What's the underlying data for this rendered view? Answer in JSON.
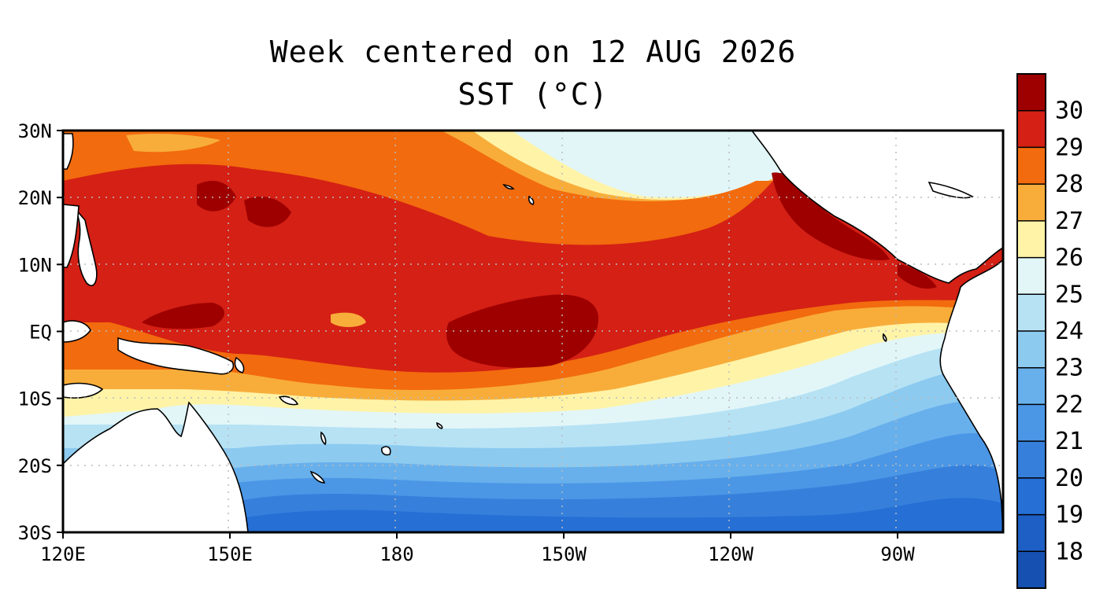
{
  "title_line1": "Week centered on 12 AUG 2026",
  "title_line2": "SST (°C)",
  "map": {
    "lon_range": [
      120,
      285
    ],
    "lat_range": [
      -30,
      30
    ],
    "x_ticks": [
      "120E",
      "150E",
      "180",
      "150W",
      "120W",
      "90W"
    ],
    "y_ticks": [
      "30N",
      "20N",
      "10N",
      "EQ",
      "10S",
      "20S",
      "30S"
    ],
    "grid": "dotted",
    "land_color": "#ffffff"
  },
  "colorbar": {
    "labels": [
      "30",
      "29",
      "28",
      "27",
      "26",
      "25",
      "24",
      "23",
      "22",
      "21",
      "20",
      "19",
      "18"
    ],
    "colors": [
      "#9e0000",
      "#d42015",
      "#f26b0e",
      "#f8ad3a",
      "#fff3a8",
      "#e2f6f8",
      "#b6e2f4",
      "#8ccaf0",
      "#68b0ec",
      "#4b97e6",
      "#3680dc",
      "#256fd5",
      "#1d5fc4",
      "#1650b0"
    ]
  }
}
